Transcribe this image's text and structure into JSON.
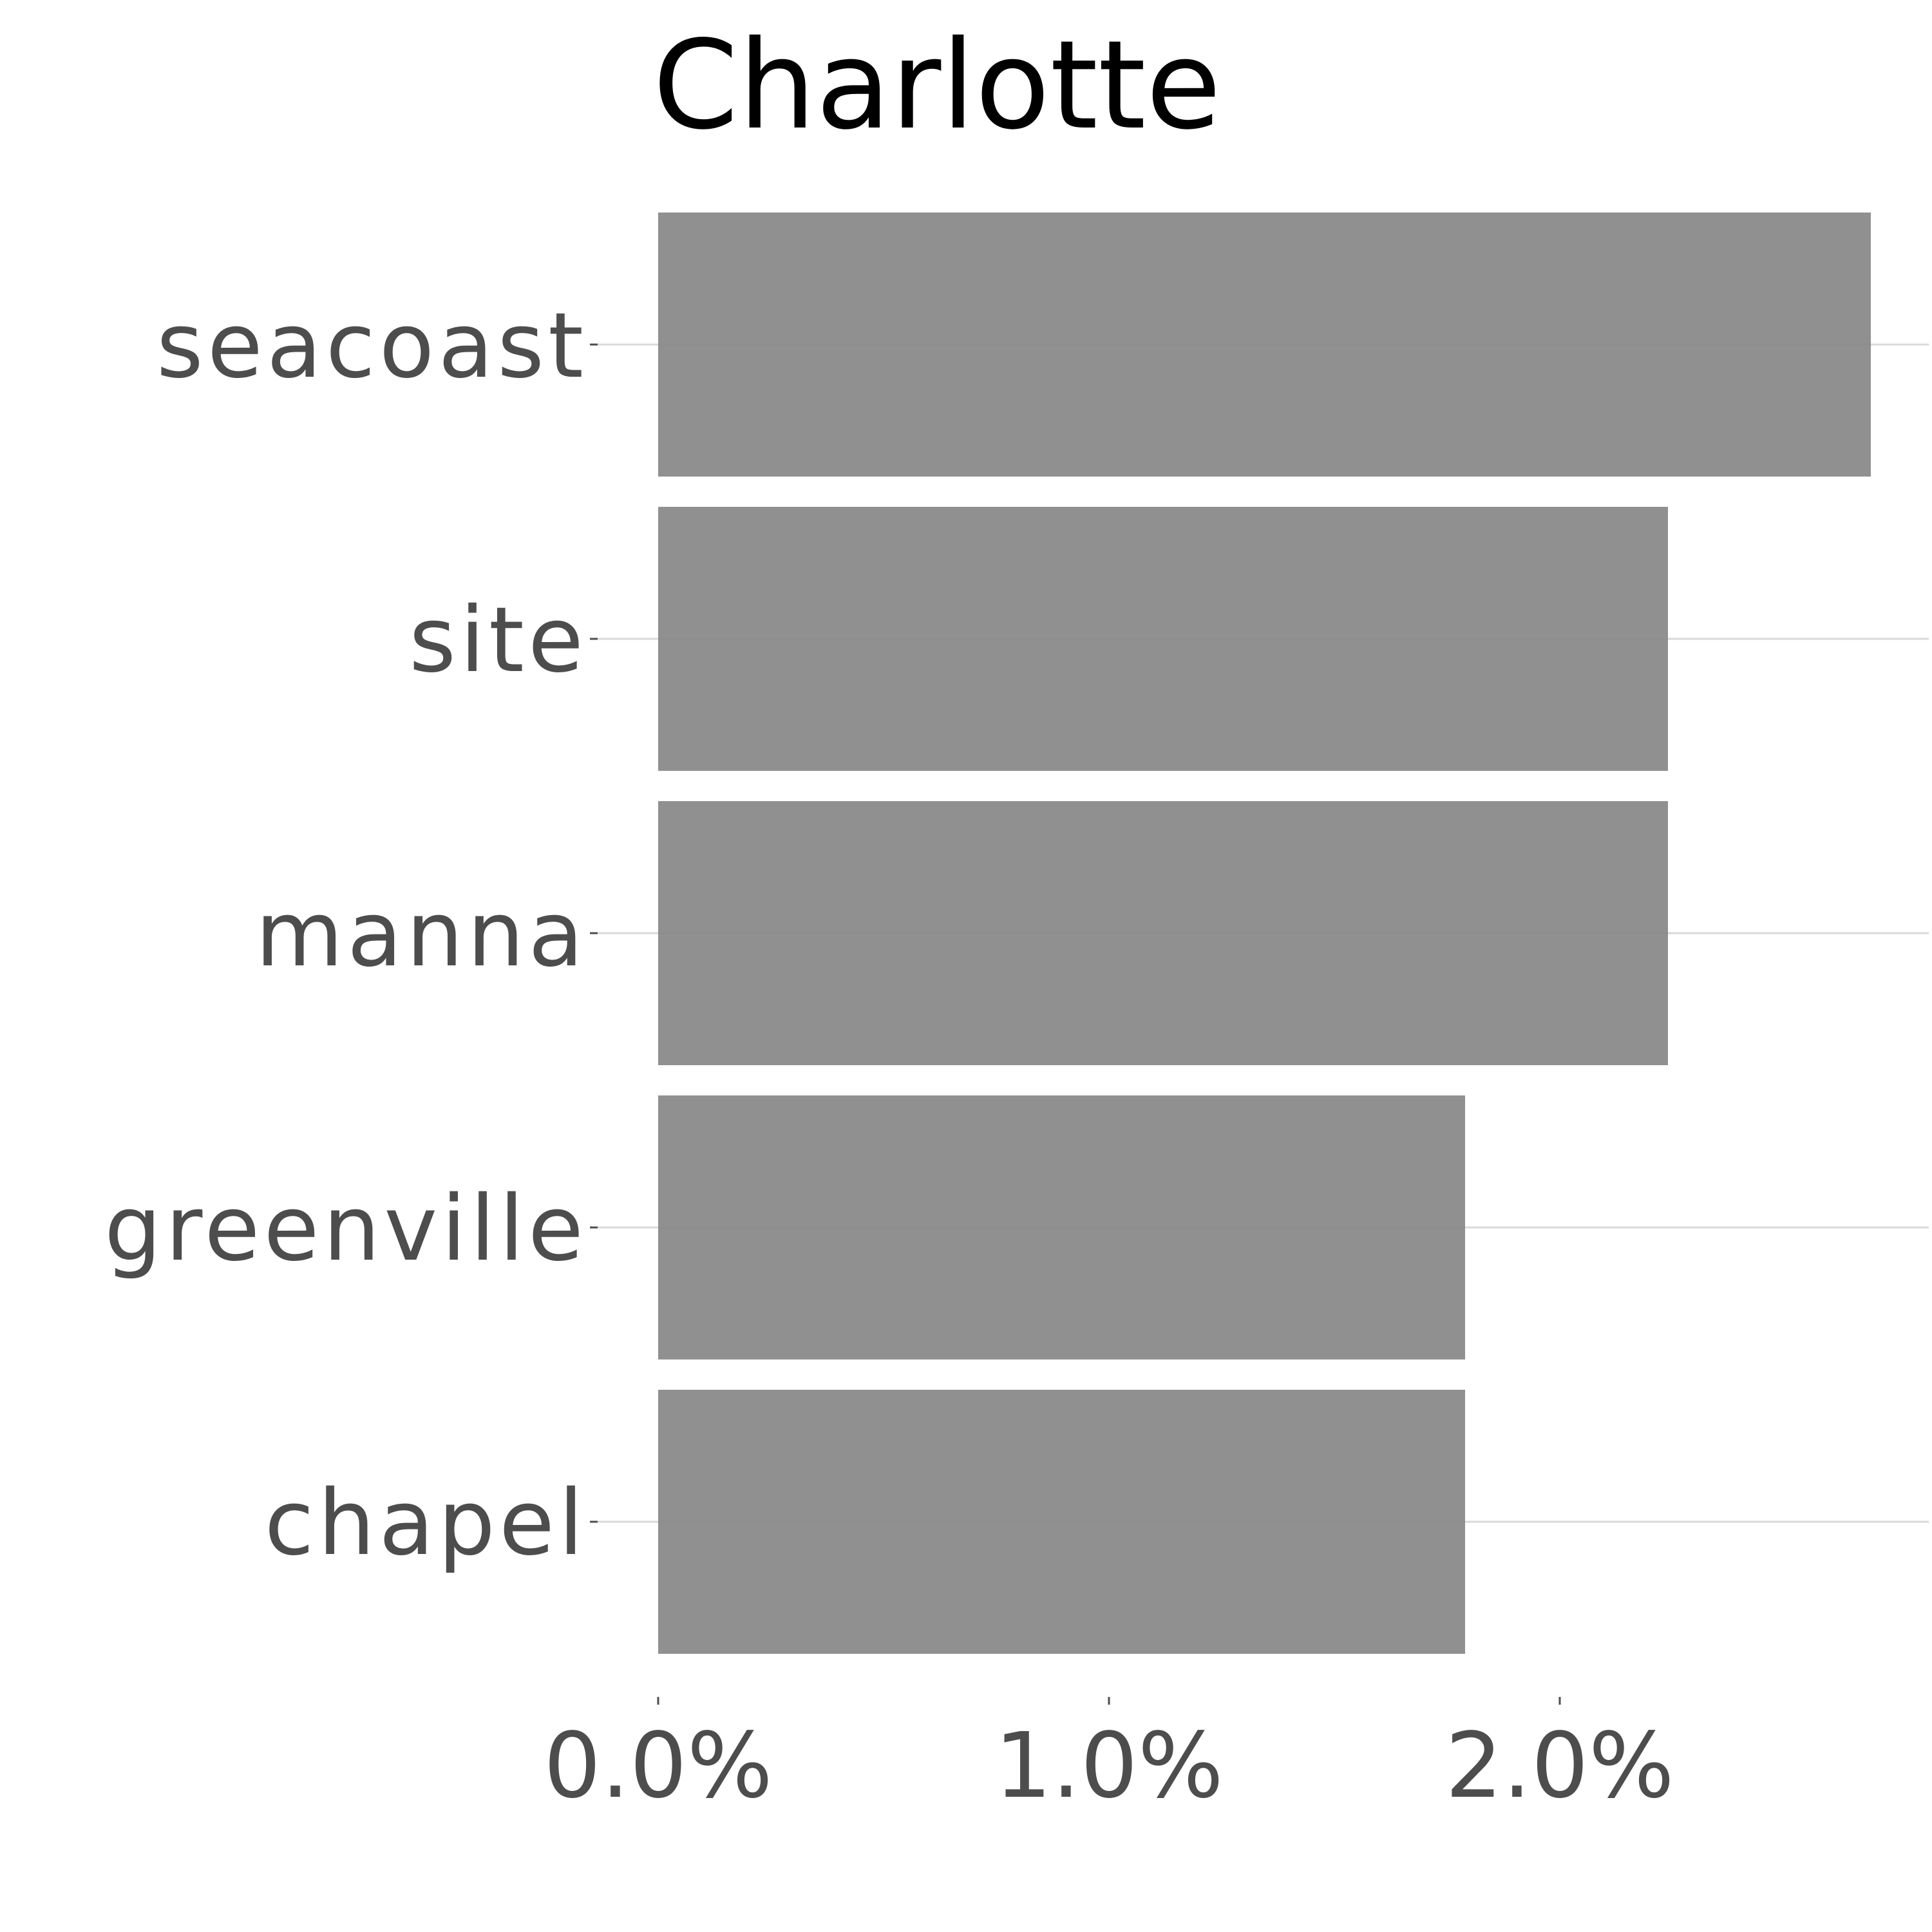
{
  "colors": {
    "bar": "#8a8a8a",
    "text": "#4d4d4d",
    "title": "#000000",
    "grid": "#d9d9d9",
    "background": "#ffffff"
  },
  "chart_data": {
    "type": "bar",
    "orientation": "horizontal",
    "title": "Charlotte",
    "xlabel": "",
    "ylabel": "",
    "categories": [
      "seacoast",
      "site",
      "manna",
      "greenville",
      "chapel"
    ],
    "values": [
      2.69,
      2.24,
      2.24,
      1.79,
      1.79
    ],
    "value_unit": "%",
    "xlim": [
      0,
      2.75
    ],
    "x_ticks": [
      0,
      1,
      2
    ],
    "x_tick_labels": [
      "0.0%",
      "1.0%",
      "2.0%"
    ],
    "grid": "horizontal major lines at categories",
    "legend": "none"
  }
}
